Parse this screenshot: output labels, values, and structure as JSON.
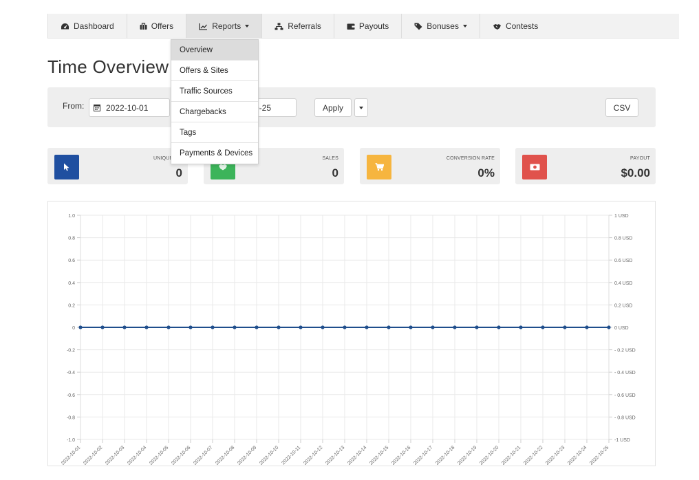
{
  "nav": {
    "items": [
      {
        "label": "Dashboard",
        "icon": "dashboard-icon"
      },
      {
        "label": "Offers",
        "icon": "briefcase-icon"
      },
      {
        "label": "Reports",
        "icon": "chart-line-icon",
        "has_caret": true,
        "active": true
      },
      {
        "label": "Referrals",
        "icon": "sitemap-icon"
      },
      {
        "label": "Payouts",
        "icon": "wallet-icon"
      },
      {
        "label": "Bonuses",
        "icon": "tag-icon",
        "has_caret": true
      },
      {
        "label": "Contests",
        "icon": "handshake-icon"
      }
    ]
  },
  "reports_dropdown": {
    "items": [
      "Overview",
      "Offers & Sites",
      "Traffic Sources",
      "Chargebacks",
      "Tags",
      "Payments & Devices"
    ],
    "active_index": 0
  },
  "page_title": "Time Overview",
  "filter": {
    "from_label": "From:",
    "from_value": "2022-10-01",
    "to_value_visible": "0-25",
    "apply_label": "Apply",
    "csv_label": "CSV"
  },
  "stats": [
    {
      "label": "UNIQUE CLI",
      "value": "0",
      "icon": "cursor-icon",
      "color": "#1f4fa0"
    },
    {
      "label": "SALES",
      "value": "0",
      "icon": "handshake-icon",
      "color": "#3cb45a"
    },
    {
      "label": "CONVERSION RATE",
      "value": "0%",
      "icon": "cart-icon",
      "color": "#f6b53f"
    },
    {
      "label": "PAYOUT",
      "value": "$0.00",
      "icon": "money-icon",
      "color": "#e0524c"
    }
  ],
  "colors": {
    "line": "#1f4e8c",
    "grid": "#e9e9e9"
  },
  "chart_data": {
    "type": "line",
    "x": [
      "2022-10-01",
      "2022-10-02",
      "2022-10-03",
      "2022-10-04",
      "2022-10-05",
      "2022-10-06",
      "2022-10-07",
      "2022-10-08",
      "2022-10-09",
      "2022-10-10",
      "2022-10-11",
      "2022-10-12",
      "2022-10-13",
      "2022-10-14",
      "2022-10-15",
      "2022-10-16",
      "2022-10-17",
      "2022-10-18",
      "2022-10-19",
      "2022-10-20",
      "2022-10-21",
      "2022-10-22",
      "2022-10-23",
      "2022-10-24",
      "2022-10-25"
    ],
    "series": [
      {
        "values": [
          0,
          0,
          0,
          0,
          0,
          0,
          0,
          0,
          0,
          0,
          0,
          0,
          0,
          0,
          0,
          0,
          0,
          0,
          0,
          0,
          0,
          0,
          0,
          0,
          0
        ]
      }
    ],
    "ylim": [
      -1,
      1
    ],
    "y_ticks_left": [
      "1.0",
      "0.8",
      "0.6",
      "0.4",
      "0.2",
      "0",
      "-0.2",
      "-0.4",
      "-0.6",
      "-0.8",
      "-1.0"
    ],
    "y_ticks_right": [
      "1 USD",
      "0.8 USD",
      "0.6 USD",
      "0.4 USD",
      "0.2 USD",
      "0 USD",
      "- 0.2 USD",
      "- 0.4 USD",
      "- 0.6 USD",
      "- 0.8 USD",
      "-1 USD"
    ],
    "grid": true
  }
}
